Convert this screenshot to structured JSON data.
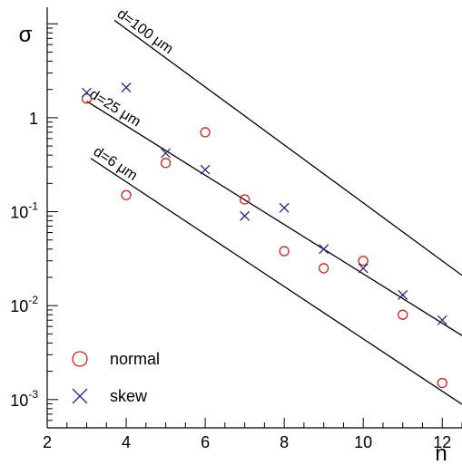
{
  "chart_data": {
    "type": "scatter",
    "xlabel": "n",
    "ylabel": "σ",
    "xlim": [
      2,
      12.5
    ],
    "ylim": [
      0.0005,
      15
    ],
    "yscale": "log",
    "x_ticks": [
      "2",
      "4",
      "6",
      "8",
      "10",
      "12"
    ],
    "y_ticks": [
      {
        "value": 0.001,
        "base": "10",
        "exp": "-3"
      },
      {
        "value": 0.01,
        "base": "10",
        "exp": "-2"
      },
      {
        "value": 0.1,
        "base": "10",
        "exp": "-1"
      },
      {
        "value": 1,
        "base": "1",
        "exp": ""
      }
    ],
    "series": [
      {
        "name": "normal",
        "marker": "circle",
        "color": "#cc2222",
        "x": [
          3,
          4,
          5,
          6,
          7,
          8,
          9,
          10,
          11,
          12
        ],
        "y": [
          1.6,
          0.15,
          0.33,
          0.7,
          0.135,
          0.038,
          0.025,
          0.03,
          0.008,
          0.0015
        ]
      },
      {
        "name": "skew",
        "marker": "cross",
        "color": "#2a2a80",
        "x": [
          3,
          4,
          5,
          6,
          7,
          8,
          9,
          10,
          11,
          12
        ],
        "y": [
          1.85,
          2.1,
          0.42,
          0.28,
          0.09,
          0.11,
          0.04,
          0.025,
          0.013,
          0.007
        ]
      }
    ],
    "lines": [
      {
        "label": "d=100 μm",
        "x": [
          3.7,
          12.5
        ],
        "y": [
          10.9,
          0.021
        ]
      },
      {
        "label": "d=25 μm",
        "x": [
          3,
          12.5
        ],
        "y": [
          1.5,
          0.0048
        ]
      },
      {
        "label": "d=6 μm",
        "x": [
          3.1,
          12.5
        ],
        "y": [
          0.37,
          0.00089
        ]
      }
    ],
    "legend": {
      "position": "bottom-left",
      "entries": [
        "normal",
        "skew"
      ]
    },
    "grid": false
  }
}
